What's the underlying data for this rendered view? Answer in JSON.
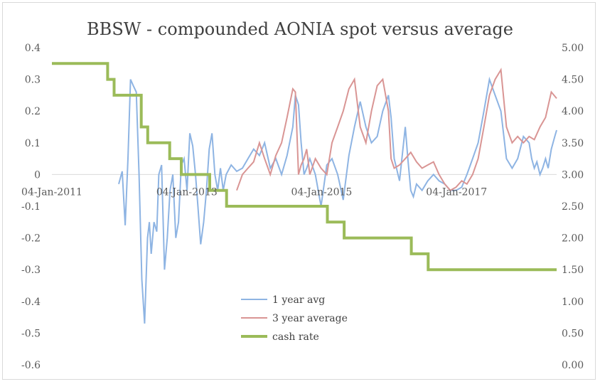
{
  "chart_data": {
    "type": "line",
    "title": "BBSW - compounded AONIA spot versus average",
    "x_tick_labels": [
      "04-Jan-2011",
      "04-Jan-2013",
      "04-Jan-2015",
      "04-Jan-2017"
    ],
    "x_range": [
      "2011-01-04",
      "2018-06-30"
    ],
    "y_left": {
      "ylim": [
        -0.6,
        0.4
      ],
      "tick_labels": [
        "0.4",
        "0.3",
        "0.2",
        "0.1",
        "0",
        "-0.1",
        "-0.2",
        "-0.3",
        "-0.4",
        "-0.5",
        "-0.6"
      ]
    },
    "y_right": {
      "ylim": [
        0.0,
        5.0
      ],
      "tick_labels": [
        "5.00",
        "4.50",
        "4.00",
        "3.50",
        "3.00",
        "2.50",
        "2.00",
        "1.50",
        "1.00",
        "0.50",
        "0.00"
      ]
    },
    "grid": false,
    "legend_position": "bottom-center",
    "series": [
      {
        "name": "1 year avg",
        "axis": "left",
        "color": "#8eb4e3",
        "x": [
          "2012-01-01",
          "2012-01-20",
          "2012-02-05",
          "2012-02-20",
          "2012-03-05",
          "2012-03-20",
          "2012-04-05",
          "2012-04-20",
          "2012-05-05",
          "2012-05-20",
          "2012-06-05",
          "2012-06-15",
          "2012-06-25",
          "2012-07-10",
          "2012-07-25",
          "2012-08-05",
          "2012-08-20",
          "2012-09-05",
          "2012-09-20",
          "2012-10-05",
          "2012-10-20",
          "2012-11-05",
          "2012-11-20",
          "2012-12-05",
          "2012-12-20",
          "2013-01-05",
          "2013-01-20",
          "2013-02-05",
          "2013-02-20",
          "2013-03-05",
          "2013-03-20",
          "2013-04-05",
          "2013-04-20",
          "2013-05-05",
          "2013-05-20",
          "2013-06-05",
          "2013-06-20",
          "2013-07-05",
          "2013-07-20",
          "2013-08-05",
          "2013-09-01",
          "2013-10-01",
          "2013-11-01",
          "2013-12-01",
          "2014-01-01",
          "2014-02-01",
          "2014-03-01",
          "2014-04-01",
          "2014-05-01",
          "2014-06-01",
          "2014-07-01",
          "2014-08-01",
          "2014-08-15",
          "2014-09-01",
          "2014-09-15",
          "2014-10-01",
          "2014-10-15",
          "2014-11-01",
          "2014-12-01",
          "2015-01-01",
          "2015-02-01",
          "2015-03-01",
          "2015-04-01",
          "2015-05-01",
          "2015-06-01",
          "2015-07-01",
          "2015-08-01",
          "2015-09-01",
          "2015-10-01",
          "2015-11-01",
          "2015-12-01",
          "2016-01-01",
          "2016-01-15",
          "2016-02-01",
          "2016-03-01",
          "2016-04-01",
          "2016-04-15",
          "2016-05-01",
          "2016-05-15",
          "2016-06-01",
          "2016-07-01",
          "2016-08-01",
          "2016-09-01",
          "2016-10-01",
          "2016-11-01",
          "2016-12-01",
          "2017-01-01",
          "2017-02-01",
          "2017-03-01",
          "2017-04-01",
          "2017-05-01",
          "2017-06-01",
          "2017-07-01",
          "2017-08-01",
          "2017-09-01",
          "2017-10-01",
          "2017-11-01",
          "2017-12-01",
          "2018-01-01",
          "2018-02-01",
          "2018-02-15",
          "2018-03-01",
          "2018-03-15",
          "2018-04-01",
          "2018-04-15",
          "2018-05-01",
          "2018-05-15",
          "2018-06-01",
          "2018-06-20",
          "2018-06-30"
        ],
        "values": [
          -0.03,
          0.01,
          -0.16,
          0.05,
          0.3,
          0.28,
          0.26,
          0.0,
          -0.33,
          -0.47,
          -0.2,
          -0.15,
          -0.25,
          -0.15,
          -0.18,
          0.0,
          0.03,
          -0.3,
          -0.2,
          -0.05,
          0.0,
          -0.2,
          -0.15,
          0.03,
          0.05,
          -0.05,
          0.13,
          0.09,
          0.0,
          -0.1,
          -0.22,
          -0.15,
          -0.05,
          0.08,
          0.13,
          0.0,
          -0.05,
          0.02,
          -0.05,
          0.0,
          0.03,
          0.01,
          0.02,
          0.05,
          0.08,
          0.06,
          0.1,
          0.02,
          0.05,
          0.0,
          0.06,
          0.15,
          0.25,
          0.22,
          0.1,
          0.0,
          0.02,
          0.05,
          0.0,
          -0.1,
          0.03,
          0.05,
          0.0,
          -0.08,
          0.06,
          0.15,
          0.23,
          0.15,
          0.1,
          0.12,
          0.2,
          0.25,
          0.18,
          0.05,
          -0.02,
          0.15,
          0.05,
          -0.05,
          -0.07,
          -0.03,
          -0.05,
          -0.02,
          0.0,
          -0.02,
          -0.03,
          -0.05,
          -0.05,
          -0.04,
          0.0,
          0.05,
          0.1,
          0.2,
          0.3,
          0.25,
          0.2,
          0.05,
          0.02,
          0.05,
          0.12,
          0.1,
          0.05,
          0.02,
          0.04,
          0.0,
          0.02,
          0.05,
          0.02,
          0.08,
          0.12,
          0.14
        ]
      },
      {
        "name": "3 year average",
        "axis": "left",
        "color": "#d99594",
        "x": [
          "2013-10-01",
          "2013-11-01",
          "2013-12-01",
          "2014-01-01",
          "2014-02-01",
          "2014-03-01",
          "2014-04-01",
          "2014-05-01",
          "2014-06-01",
          "2014-07-01",
          "2014-08-01",
          "2014-08-15",
          "2014-09-01",
          "2014-09-15",
          "2014-10-01",
          "2014-10-15",
          "2014-11-01",
          "2014-12-01",
          "2015-01-01",
          "2015-02-01",
          "2015-03-01",
          "2015-04-01",
          "2015-05-01",
          "2015-06-01",
          "2015-07-01",
          "2015-08-01",
          "2015-09-01",
          "2015-10-01",
          "2015-11-01",
          "2015-12-01",
          "2016-01-01",
          "2016-01-15",
          "2016-02-01",
          "2016-03-01",
          "2016-04-01",
          "2016-05-01",
          "2016-06-01",
          "2016-07-01",
          "2016-08-01",
          "2016-09-01",
          "2016-10-01",
          "2016-11-01",
          "2016-12-01",
          "2017-01-01",
          "2017-02-01",
          "2017-03-01",
          "2017-04-01",
          "2017-05-01",
          "2017-06-01",
          "2017-07-01",
          "2017-08-01",
          "2017-09-01",
          "2017-10-01",
          "2017-11-01",
          "2017-12-01",
          "2018-01-01",
          "2018-02-01",
          "2018-03-01",
          "2018-04-01",
          "2018-05-01",
          "2018-06-01",
          "2018-06-30"
        ],
        "values": [
          -0.05,
          0.0,
          0.02,
          0.04,
          0.1,
          0.05,
          0.0,
          0.06,
          0.1,
          0.18,
          0.27,
          0.26,
          0.0,
          0.03,
          0.05,
          0.08,
          0.0,
          0.05,
          0.02,
          0.0,
          0.1,
          0.15,
          0.2,
          0.27,
          0.3,
          0.15,
          0.1,
          0.2,
          0.28,
          0.3,
          0.2,
          0.05,
          0.02,
          0.03,
          0.05,
          0.07,
          0.04,
          0.02,
          0.03,
          0.04,
          0.0,
          -0.03,
          -0.05,
          -0.04,
          -0.02,
          -0.03,
          0.0,
          0.05,
          0.15,
          0.25,
          0.3,
          0.33,
          0.15,
          0.1,
          0.12,
          0.1,
          0.12,
          0.11,
          0.15,
          0.18,
          0.26,
          0.24
        ]
      },
      {
        "name": "cash rate",
        "axis": "right",
        "color": "#9bbb59",
        "step": true,
        "x": [
          "2011-01-04",
          "2011-11-02",
          "2011-12-07",
          "2012-05-02",
          "2012-06-06",
          "2012-10-03",
          "2012-12-05",
          "2013-05-08",
          "2013-08-07",
          "2015-02-04",
          "2015-05-06",
          "2016-05-04",
          "2016-08-03",
          "2018-06-30"
        ],
        "values": [
          4.75,
          4.5,
          4.25,
          3.75,
          3.5,
          3.25,
          3.0,
          2.75,
          2.5,
          2.25,
          2.0,
          1.75,
          1.5,
          1.5
        ]
      }
    ]
  }
}
